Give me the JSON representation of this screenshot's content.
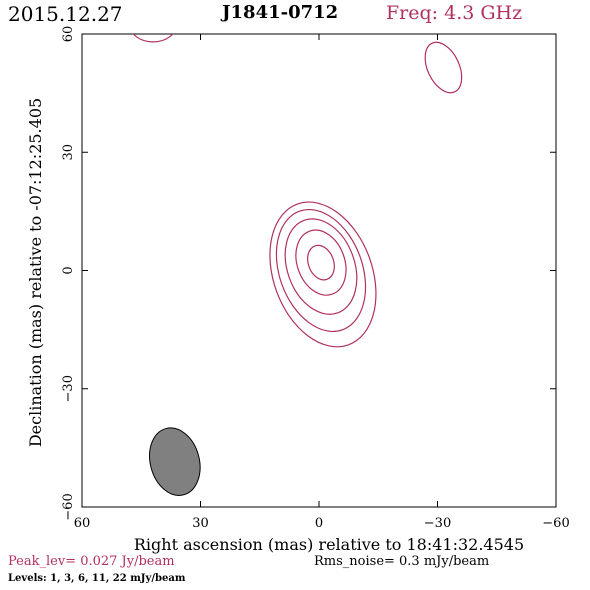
{
  "header": {
    "date": "2015.12.27",
    "source": "J1841-0712",
    "freq": "Freq: 4.3 GHz"
  },
  "footer": {
    "peak": "Peak_lev=  0.027 Jy/beam",
    "rms": "Rms_noise=  0.3 mJy/beam",
    "levels": "Levels:   1,   3,   6,   11,   22 mJy/beam"
  },
  "colors": {
    "contour": "#b03060",
    "beam_fill": "#808080",
    "axis": "#000000"
  },
  "chart_data": {
    "type": "contour",
    "title": "J1841-0712",
    "xlabel": "Right ascension (mas) relative to 18:41:32.4545",
    "ylabel": "Declination (mas) relative to -07:12:25.405",
    "xlim": [
      60,
      -60
    ],
    "ylim": [
      -60,
      60
    ],
    "xticks": [
      60,
      30,
      0,
      -30,
      -60
    ],
    "yticks": [
      -60,
      -30,
      0,
      30,
      60
    ],
    "xtick_labels": [
      "60",
      "30",
      "0",
      "−30",
      "−60"
    ],
    "ytick_labels": [
      "−60",
      "−30",
      "0",
      "30",
      "60"
    ],
    "levels_mJy": [
      1,
      3,
      6,
      11,
      22
    ],
    "contours": [
      {
        "ra": -0.5,
        "dec": 2,
        "a_ra": 3.2,
        "a_dec": 4.5,
        "angle": -20
      },
      {
        "ra": -0.5,
        "dec": 2,
        "a_ra": 6.0,
        "a_dec": 8.5,
        "angle": -20
      },
      {
        "ra": -0.5,
        "dec": 1,
        "a_ra": 8.5,
        "a_dec": 12.5,
        "angle": -20
      },
      {
        "ra": -0.5,
        "dec": 0,
        "a_ra": 10.5,
        "a_dec": 16.0,
        "angle": -20
      },
      {
        "ra": -1.0,
        "dec": -1,
        "a_ra": 12.5,
        "a_dec": 19.0,
        "angle": -20
      },
      {
        "ra": -31.5,
        "dec": 51.5,
        "a_ra": 4.0,
        "a_dec": 6.8,
        "angle": -25
      },
      {
        "ra": 42.0,
        "dec": 62.5,
        "a_ra": 6.0,
        "a_dec": 4.5,
        "angle": 0
      }
    ],
    "beam": {
      "ra": 36.5,
      "dec": -48.5,
      "a_ra": 6.2,
      "a_dec": 8.7,
      "angle": -15
    }
  }
}
